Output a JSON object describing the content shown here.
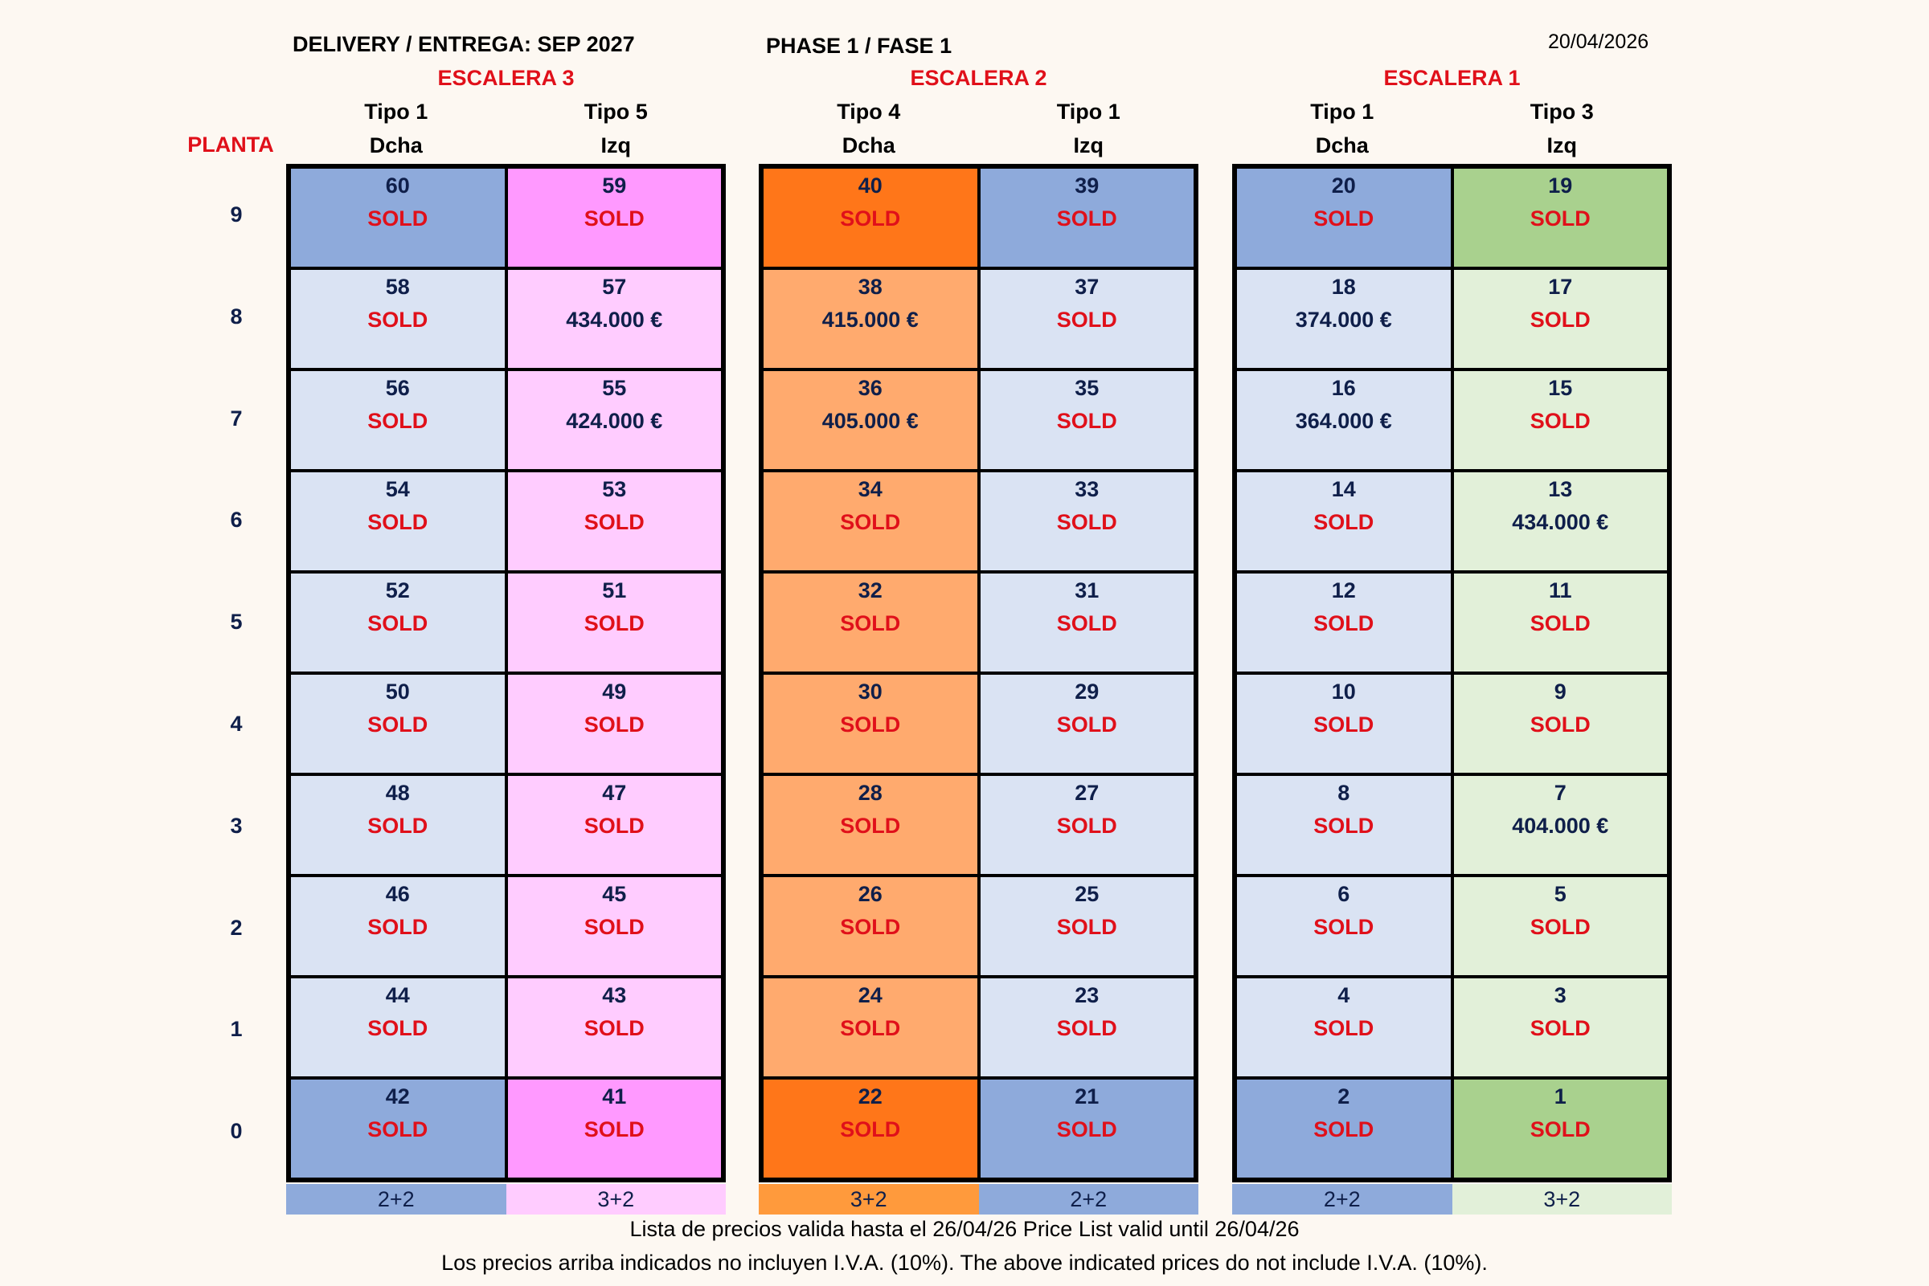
{
  "header": {
    "delivery": "DELIVERY / ENTREGA: SEP 2027",
    "phase": "PHASE 1 / FASE 1",
    "date": "20/04/2026"
  },
  "planta_label": "PLANTA",
  "floors": [
    "9",
    "8",
    "7",
    "6",
    "5",
    "4",
    "3",
    "2",
    "1",
    "0"
  ],
  "colors": {
    "blue_dark": "#8eaadb",
    "blue_light": "#dae3f3",
    "pink_dark": "#ff99ff",
    "pink_light": "#ffccff",
    "orange_dark": "#ff7619",
    "orange_light": "#ffaa6e",
    "green_dark": "#a9d18e",
    "green_light": "#e2f0d9",
    "sold_red": "#e0101a",
    "navy": "#0f1f4a"
  },
  "blocks": [
    {
      "escalera": "ESCALERA 3",
      "columns": [
        {
          "tipo": "Tipo 1",
          "side": "Dcha",
          "bar": "2+2",
          "bar_color": "#8eaadb",
          "dark": "#8eaadb",
          "light": "#dae3f3",
          "units": [
            {
              "num": "60",
              "status": "SOLD"
            },
            {
              "num": "58",
              "status": "SOLD"
            },
            {
              "num": "56",
              "status": "SOLD"
            },
            {
              "num": "54",
              "status": "SOLD"
            },
            {
              "num": "52",
              "status": "SOLD"
            },
            {
              "num": "50",
              "status": "SOLD"
            },
            {
              "num": "48",
              "status": "SOLD"
            },
            {
              "num": "46",
              "status": "SOLD"
            },
            {
              "num": "44",
              "status": "SOLD"
            },
            {
              "num": "42",
              "status": "SOLD"
            }
          ]
        },
        {
          "tipo": "Tipo 5",
          "side": "Izq",
          "bar": "3+2",
          "bar_color": "#ffccff",
          "dark": "#ff99ff",
          "light": "#ffccff",
          "units": [
            {
              "num": "59",
              "status": "SOLD"
            },
            {
              "num": "57",
              "status": "434.000 €"
            },
            {
              "num": "55",
              "status": "424.000 €"
            },
            {
              "num": "53",
              "status": "SOLD"
            },
            {
              "num": "51",
              "status": "SOLD"
            },
            {
              "num": "49",
              "status": "SOLD"
            },
            {
              "num": "47",
              "status": "SOLD"
            },
            {
              "num": "45",
              "status": "SOLD"
            },
            {
              "num": "43",
              "status": "SOLD"
            },
            {
              "num": "41",
              "status": "SOLD"
            }
          ]
        }
      ]
    },
    {
      "escalera": "ESCALERA 2",
      "columns": [
        {
          "tipo": "Tipo 4",
          "side": "Dcha",
          "bar": "3+2",
          "bar_color": "#ff9a3c",
          "dark": "#ff7619",
          "light": "#ffaa6e",
          "units": [
            {
              "num": "40",
              "status": "SOLD"
            },
            {
              "num": "38",
              "status": "415.000 €"
            },
            {
              "num": "36",
              "status": "405.000 €"
            },
            {
              "num": "34",
              "status": "SOLD"
            },
            {
              "num": "32",
              "status": "SOLD"
            },
            {
              "num": "30",
              "status": "SOLD"
            },
            {
              "num": "28",
              "status": "SOLD"
            },
            {
              "num": "26",
              "status": "SOLD"
            },
            {
              "num": "24",
              "status": "SOLD"
            },
            {
              "num": "22",
              "status": "SOLD"
            }
          ]
        },
        {
          "tipo": "Tipo 1",
          "side": "Izq",
          "bar": "2+2",
          "bar_color": "#8eaadb",
          "dark": "#8eaadb",
          "light": "#dae3f3",
          "units": [
            {
              "num": "39",
              "status": "SOLD"
            },
            {
              "num": "37",
              "status": "SOLD"
            },
            {
              "num": "35",
              "status": "SOLD"
            },
            {
              "num": "33",
              "status": "SOLD"
            },
            {
              "num": "31",
              "status": "SOLD"
            },
            {
              "num": "29",
              "status": "SOLD"
            },
            {
              "num": "27",
              "status": "SOLD"
            },
            {
              "num": "25",
              "status": "SOLD"
            },
            {
              "num": "23",
              "status": "SOLD"
            },
            {
              "num": "21",
              "status": "SOLD"
            }
          ]
        }
      ]
    },
    {
      "escalera": "ESCALERA 1",
      "columns": [
        {
          "tipo": "Tipo 1",
          "side": "Dcha",
          "bar": "2+2",
          "bar_color": "#8eaadb",
          "dark": "#8eaadb",
          "light": "#dae3f3",
          "units": [
            {
              "num": "20",
              "status": "SOLD"
            },
            {
              "num": "18",
              "status": "374.000 €"
            },
            {
              "num": "16",
              "status": "364.000 €"
            },
            {
              "num": "14",
              "status": "SOLD"
            },
            {
              "num": "12",
              "status": "SOLD"
            },
            {
              "num": "10",
              "status": "SOLD"
            },
            {
              "num": "8",
              "status": "SOLD"
            },
            {
              "num": "6",
              "status": "SOLD"
            },
            {
              "num": "4",
              "status": "SOLD"
            },
            {
              "num": "2",
              "status": "SOLD"
            }
          ]
        },
        {
          "tipo": "Tipo 3",
          "side": "Izq",
          "bar": "3+2",
          "bar_color": "#e2f0d9",
          "dark": "#a9d18e",
          "light": "#e2f0d9",
          "units": [
            {
              "num": "19",
              "status": "SOLD"
            },
            {
              "num": "17",
              "status": "SOLD"
            },
            {
              "num": "15",
              "status": "SOLD"
            },
            {
              "num": "13",
              "status": "434.000 €"
            },
            {
              "num": "11",
              "status": "SOLD"
            },
            {
              "num": "9",
              "status": "SOLD"
            },
            {
              "num": "7",
              "status": "404.000 €"
            },
            {
              "num": "5",
              "status": "SOLD"
            },
            {
              "num": "3",
              "status": "SOLD"
            },
            {
              "num": "1",
              "status": "SOLD"
            }
          ]
        }
      ]
    }
  ],
  "footer": {
    "line1": "Lista de precios valida hasta el 26/04/26 Price List valid until 26/04/26",
    "line2": "Los precios arriba indicados no incluyen I.V.A. (10%). The above indicated prices do not include I.V.A. (10%)."
  }
}
